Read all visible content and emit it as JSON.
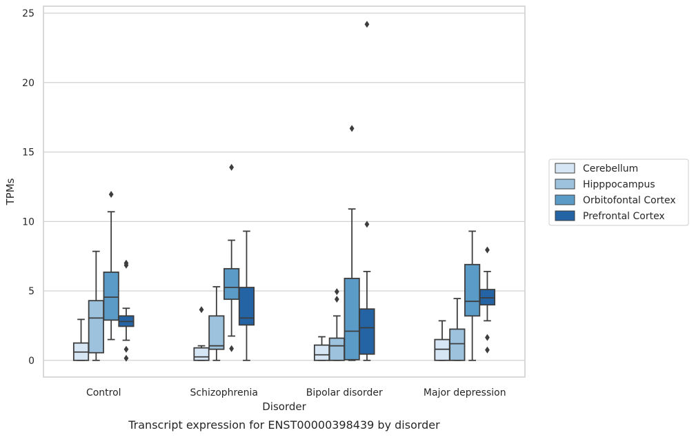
{
  "chart_data": {
    "type": "box",
    "caption": "Transcript expression for ENST00000398439 by disorder",
    "xlabel": "Disorder",
    "ylabel": "TPMs",
    "ylim": [
      -1.2,
      25.5
    ],
    "yticks": [
      0,
      5,
      10,
      15,
      20,
      25
    ],
    "grid": "horizontal",
    "legend_position": "right",
    "categories": [
      "Control",
      "Schizophrenia",
      "Bipolar disorder",
      "Major depression"
    ],
    "series": [
      {
        "name": "Cerebellum",
        "color": "#d6e6f4",
        "boxes": [
          {
            "whisker_low": 0,
            "q1": 0,
            "median": 0.6,
            "q3": 1.25,
            "whisker_high": 2.95,
            "outliers": []
          },
          {
            "whisker_low": 0,
            "q1": 0,
            "median": 0.25,
            "q3": 0.9,
            "whisker_high": 1.05,
            "outliers": [
              3.65
            ]
          },
          {
            "whisker_low": 0,
            "q1": 0,
            "median": 0.4,
            "q3": 1.1,
            "whisker_high": 1.7,
            "outliers": []
          },
          {
            "whisker_low": 0,
            "q1": 0,
            "median": 0.8,
            "q3": 1.5,
            "whisker_high": 2.85,
            "outliers": []
          }
        ]
      },
      {
        "name": "Hipppocampus",
        "color": "#9dc2dd",
        "boxes": [
          {
            "whisker_low": 0,
            "q1": 0.55,
            "median": 3.05,
            "q3": 4.3,
            "whisker_high": 7.85,
            "outliers": []
          },
          {
            "whisker_low": 0,
            "q1": 0.8,
            "median": 1.05,
            "q3": 3.2,
            "whisker_high": 5.3,
            "outliers": []
          },
          {
            "whisker_low": 0,
            "q1": 0,
            "median": 1.05,
            "q3": 1.6,
            "whisker_high": 3.2,
            "outliers": [
              4.4,
              4.95
            ]
          },
          {
            "whisker_low": 0,
            "q1": 0,
            "median": 1.2,
            "q3": 2.25,
            "whisker_high": 4.45,
            "outliers": []
          }
        ]
      },
      {
        "name": "Orbitofontal Cortex",
        "color": "#5a9bc8",
        "boxes": [
          {
            "whisker_low": 1.5,
            "q1": 2.9,
            "median": 4.55,
            "q3": 6.35,
            "whisker_high": 10.7,
            "outliers": [
              11.95
            ]
          },
          {
            "whisker_low": 1.75,
            "q1": 4.4,
            "median": 5.25,
            "q3": 6.6,
            "whisker_high": 8.65,
            "outliers": [
              0.85,
              13.9
            ]
          },
          {
            "whisker_low": 0,
            "q1": 0.05,
            "median": 2.1,
            "q3": 5.9,
            "whisker_high": 10.9,
            "outliers": [
              16.7
            ]
          },
          {
            "whisker_low": 0,
            "q1": 3.2,
            "median": 4.25,
            "q3": 6.9,
            "whisker_high": 9.3,
            "outliers": []
          }
        ]
      },
      {
        "name": "Prefrontal Cortex",
        "color": "#2463a4",
        "boxes": [
          {
            "whisker_low": 1.45,
            "q1": 2.45,
            "median": 2.8,
            "q3": 3.2,
            "whisker_high": 3.75,
            "outliers": [
              0.15,
              0.8,
              6.85,
              7.0
            ]
          },
          {
            "whisker_low": 0,
            "q1": 2.55,
            "median": 3.05,
            "q3": 5.25,
            "whisker_high": 9.3,
            "outliers": []
          },
          {
            "whisker_low": 0,
            "q1": 0.45,
            "median": 2.35,
            "q3": 3.7,
            "whisker_high": 6.4,
            "outliers": [
              9.8,
              24.2
            ]
          },
          {
            "whisker_low": 2.85,
            "q1": 4.0,
            "median": 4.5,
            "q3": 5.1,
            "whisker_high": 6.4,
            "outliers": [
              0.75,
              1.65,
              7.95
            ]
          }
        ]
      }
    ]
  }
}
